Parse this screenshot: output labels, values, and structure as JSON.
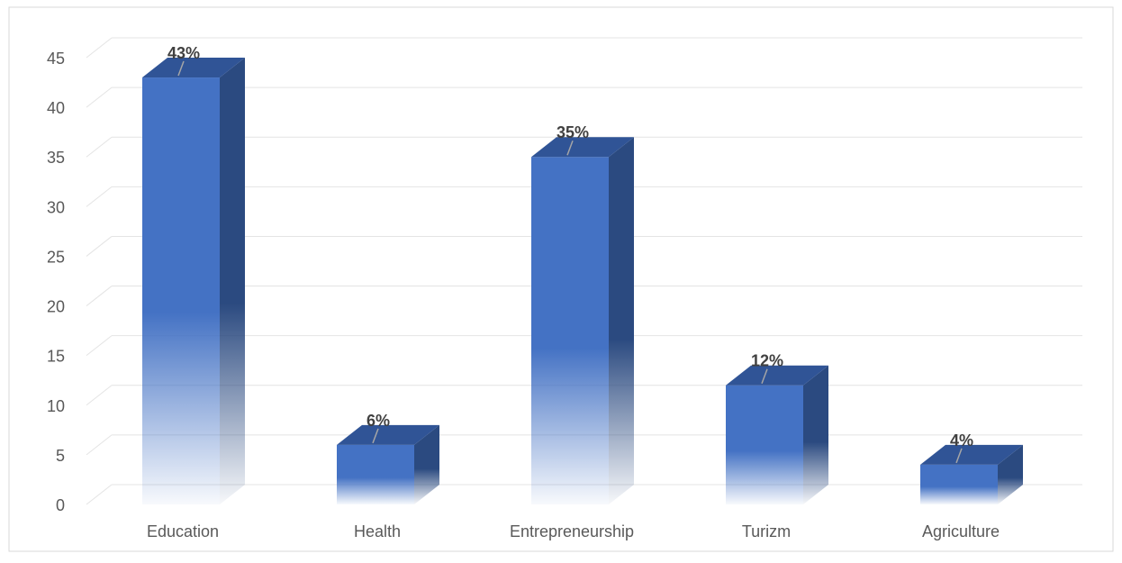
{
  "chart_data": {
    "type": "bar",
    "title": "",
    "xlabel": "",
    "ylabel": "",
    "categories": [
      "Education",
      "Health",
      "Entrepreneurship",
      "Turizm",
      "Agriculture"
    ],
    "values": [
      43,
      6,
      35,
      12,
      4
    ],
    "labels": [
      "43%",
      "6%",
      "35%",
      "12%",
      "4%"
    ],
    "ylim": [
      0,
      45
    ],
    "yticks": [
      "0",
      "5",
      "10",
      "15",
      "20",
      "25",
      "30",
      "35",
      "40",
      "45"
    ],
    "grid": true,
    "legend": "none",
    "colors": {
      "front": "#4472c4",
      "side": "#2b4a80",
      "top": "#305496",
      "grid": "#e4e4e4",
      "axis_text": "#595959",
      "label_text": "#404040"
    }
  }
}
